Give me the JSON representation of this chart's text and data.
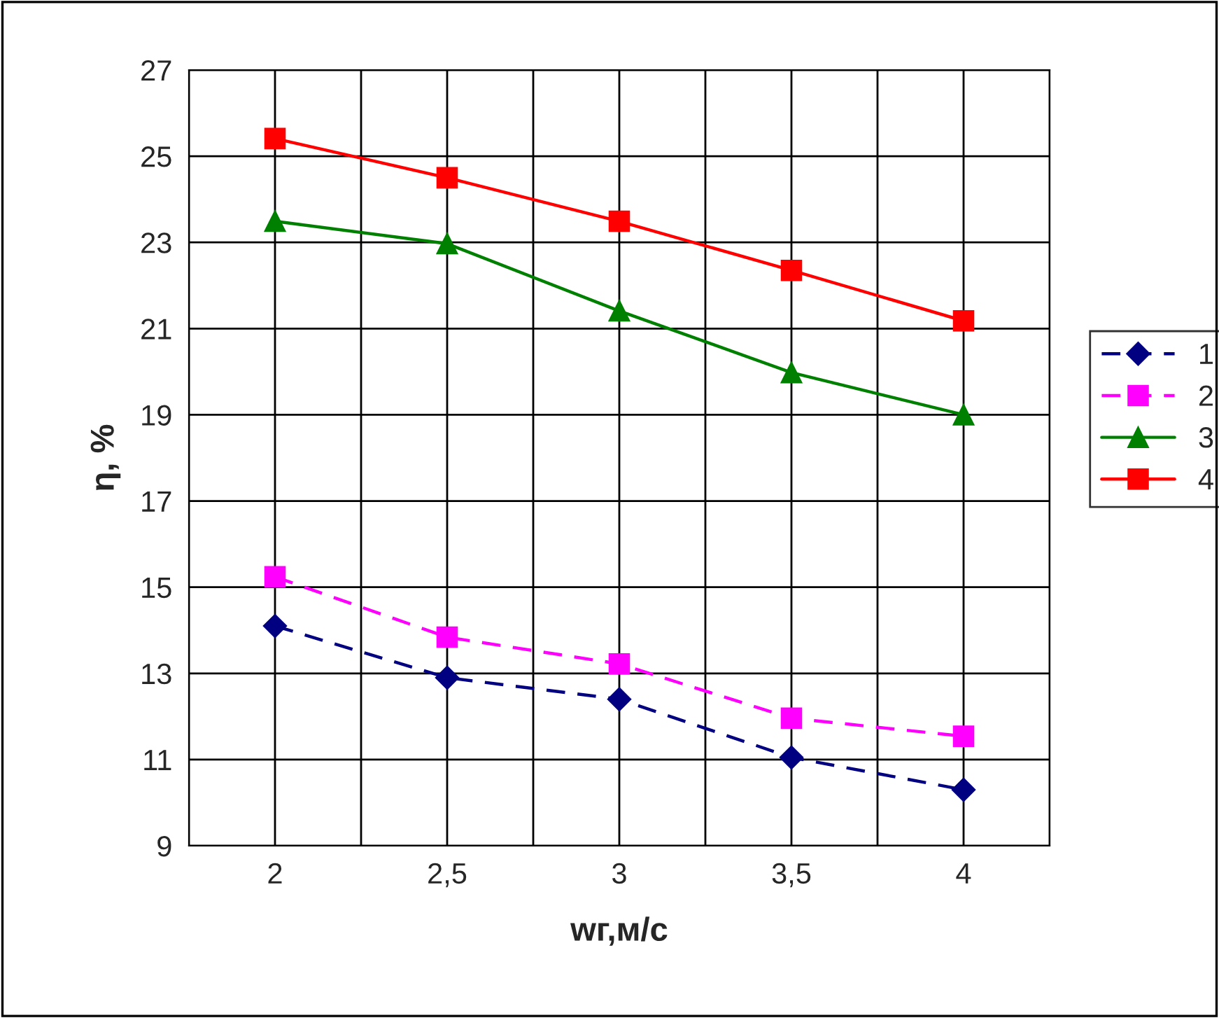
{
  "chart_data": {
    "type": "line",
    "xlabel": "wг,м/с",
    "ylabel": "η, %",
    "x": [
      2,
      2.5,
      3,
      3.5,
      4
    ],
    "xlim": [
      1.75,
      4.25
    ],
    "xticks": [
      {
        "value": 1.75,
        "label": null
      },
      {
        "value": 2,
        "label": "2"
      },
      {
        "value": 2.25,
        "label": null
      },
      {
        "value": 2.5,
        "label": "2,5"
      },
      {
        "value": 2.75,
        "label": null
      },
      {
        "value": 3,
        "label": "3"
      },
      {
        "value": 3.25,
        "label": null
      },
      {
        "value": 3.5,
        "label": "3,5"
      },
      {
        "value": 3.75,
        "label": null
      },
      {
        "value": 4,
        "label": "4"
      },
      {
        "value": 4.25,
        "label": null
      }
    ],
    "ylim": [
      9,
      27
    ],
    "yticks": [
      9,
      11,
      13,
      15,
      17,
      19,
      21,
      23,
      25,
      27
    ],
    "grid": true,
    "legend": "right",
    "series": [
      {
        "name": "1",
        "color": "#000080",
        "marker": "diamond",
        "line_style": "dashed",
        "values": [
          14.1,
          12.9,
          12.4,
          11.05,
          10.3
        ]
      },
      {
        "name": "2",
        "color": "#ff00ff",
        "marker": "square",
        "line_style": "dashed",
        "values": [
          15.24,
          13.84,
          13.22,
          11.96,
          11.54
        ]
      },
      {
        "name": "3",
        "color": "#008000",
        "marker": "triangle",
        "line_style": "solid",
        "values": [
          23.49,
          22.97,
          21.41,
          19.98,
          19.0
        ]
      },
      {
        "name": "4",
        "color": "#ff0000",
        "marker": "square",
        "line_style": "solid",
        "values": [
          25.41,
          24.5,
          23.49,
          22.35,
          21.18
        ]
      }
    ]
  }
}
